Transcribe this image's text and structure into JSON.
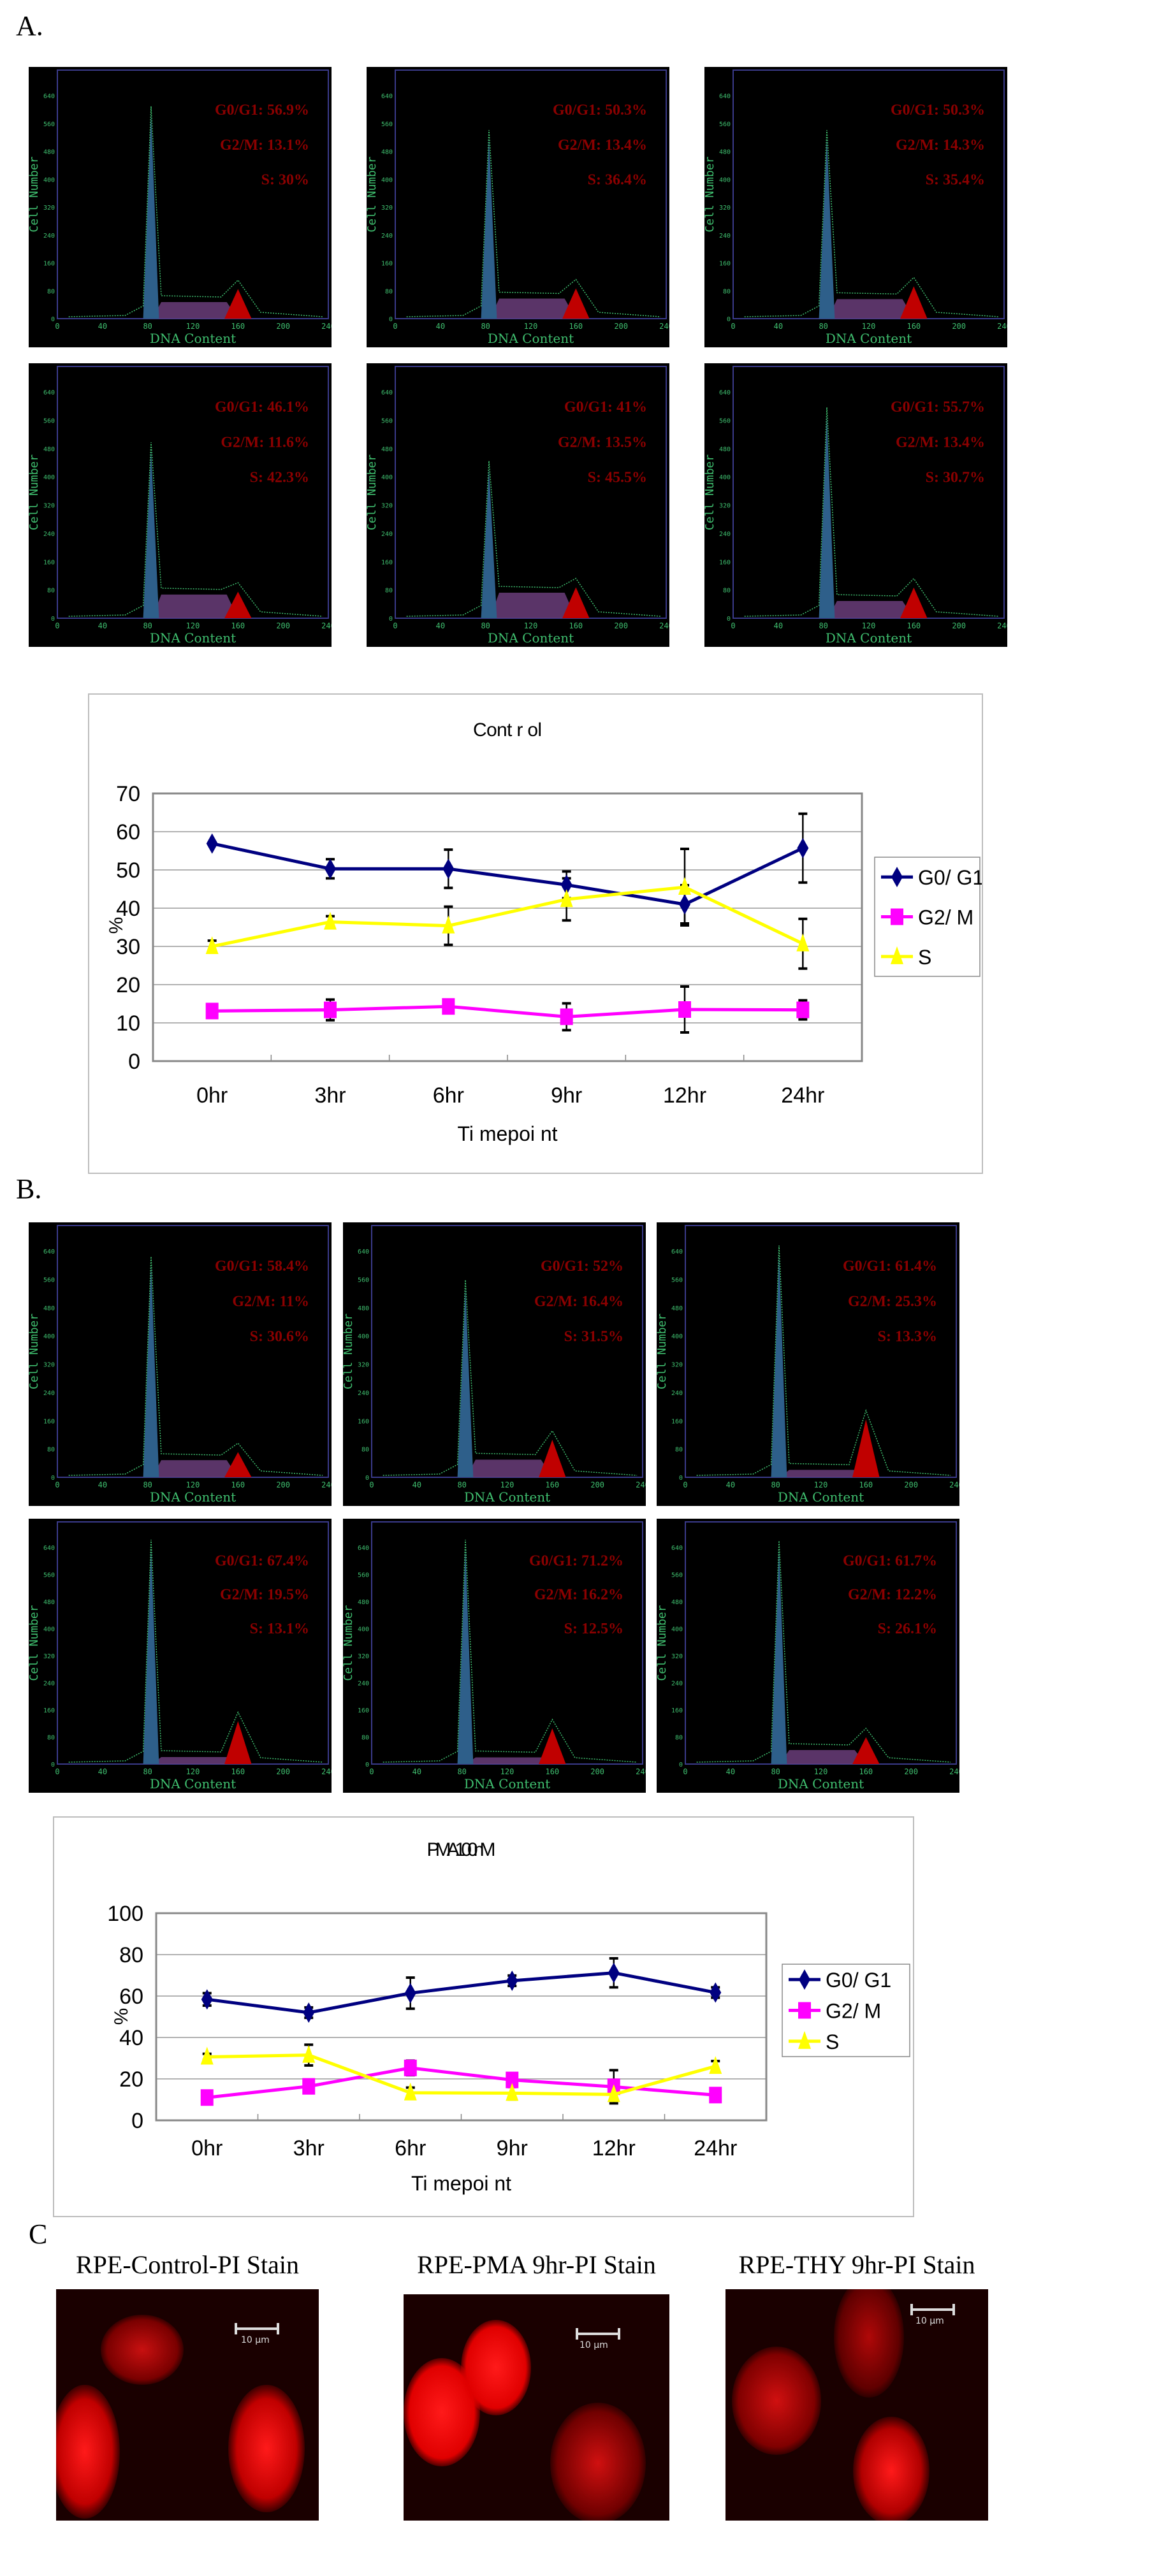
{
  "labels": {
    "a": "A.",
    "b": "B.",
    "c": "C"
  },
  "histogram_axes": {
    "ylabel": "Cell Number",
    "xlabel": "DNA Content",
    "yticks": [
      "0",
      "80",
      "160",
      "240",
      "320",
      "400",
      "480",
      "560",
      "640"
    ],
    "xticks": [
      "0",
      "40",
      "80",
      "120",
      "160",
      "200",
      "240"
    ]
  },
  "colors": {
    "g1_peak": "#2e5f8a",
    "s_phase": "#6a3d7a",
    "g2_peak": "#c00000",
    "trace": "#3fbf6f",
    "stats_text": "#8b0000"
  },
  "panel_a_histograms": [
    {
      "g0g1": "G0/G1: 56.9%",
      "g2m": "G2/M: 13.1%",
      "s": "S: 30%"
    },
    {
      "g0g1": "G0/G1: 50.3%",
      "g2m": "G2/M: 13.4%",
      "s": "S: 36.4%"
    },
    {
      "g0g1": "G0/G1: 50.3%",
      "g2m": "G2/M: 14.3%",
      "s": "S: 35.4%"
    },
    {
      "g0g1": "G0/G1: 46.1%",
      "g2m": "G2/M: 11.6%",
      "s": "S: 42.3%"
    },
    {
      "g0g1": "G0/G1: 41%",
      "g2m": "G2/M: 13.5%",
      "s": "S: 45.5%"
    },
    {
      "g0g1": "G0/G1: 55.7%",
      "g2m": "G2/M: 13.4%",
      "s": "S: 30.7%"
    }
  ],
  "panel_b_histograms": [
    {
      "g0g1": "G0/G1: 58.4%",
      "g2m": "G2/M: 11%",
      "s": "S: 30.6%"
    },
    {
      "g0g1": "G0/G1: 52%",
      "g2m": "G2/M: 16.4%",
      "s": "S: 31.5%"
    },
    {
      "g0g1": "G0/G1: 61.4%",
      "g2m": "G2/M: 25.3%",
      "s": "S: 13.3%"
    },
    {
      "g0g1": "G0/G1: 67.4%",
      "g2m": "G2/M: 19.5%",
      "s": "S: 13.1%"
    },
    {
      "g0g1": "G0/G1: 71.2%",
      "g2m": "G2/M: 16.2%",
      "s": "S: 12.5%"
    },
    {
      "g0g1": "G0/G1: 61.7%",
      "g2m": "G2/M: 12.2%",
      "s": "S: 26.1%"
    }
  ],
  "chart_data": [
    {
      "type": "line",
      "title": "Cont r ol",
      "xlabel": "Ti mepoi nt",
      "ylabel": "%",
      "categories": [
        "0hr",
        "3hr",
        "6hr",
        "9hr",
        "12hr",
        "24hr"
      ],
      "ylim": [
        0,
        70
      ],
      "yticks": [
        0,
        10,
        20,
        30,
        40,
        50,
        60,
        70
      ],
      "grid": true,
      "legend": "right",
      "series": [
        {
          "name": "G0/ G1",
          "color": "#000080",
          "marker": "diamond",
          "values": [
            56.9,
            50.3,
            50.3,
            46.1,
            41,
            55.7
          ],
          "errors": [
            0,
            2.5,
            5,
            3.5,
            5,
            9
          ]
        },
        {
          "name": "G2/ M",
          "color": "#ff00ff",
          "marker": "square",
          "values": [
            13.1,
            13.4,
            14.3,
            11.6,
            13.5,
            13.4
          ],
          "errors": [
            0,
            2.7,
            0,
            3.5,
            6,
            2.5
          ]
        },
        {
          "name": "S",
          "color": "#ffff00",
          "marker": "triangle",
          "values": [
            30,
            36.4,
            35.4,
            42.3,
            45.5,
            30.7
          ],
          "errors": [
            1.5,
            1.5,
            5,
            5.5,
            10,
            6.5
          ]
        }
      ]
    },
    {
      "type": "line",
      "title": "PMA 100nM",
      "xlabel": "Ti mepoi nt",
      "ylabel": "%",
      "categories": [
        "0hr",
        "3hr",
        "6hr",
        "9hr",
        "12hr",
        "24hr"
      ],
      "ylim": [
        0,
        100
      ],
      "yticks": [
        0,
        20,
        40,
        60,
        80,
        100
      ],
      "grid": true,
      "legend": "right",
      "series": [
        {
          "name": "G0/ G1",
          "color": "#000080",
          "marker": "diamond",
          "values": [
            58.4,
            52,
            61.4,
            67.4,
            71.2,
            61.7
          ],
          "errors": [
            3,
            2.5,
            7.5,
            2.5,
            7,
            2.5
          ]
        },
        {
          "name": "G2/ M",
          "color": "#ff00ff",
          "marker": "square",
          "values": [
            11,
            16.4,
            25.3,
            19.5,
            16.2,
            12.2
          ],
          "errors": [
            0,
            3,
            3.5,
            3,
            8,
            0
          ]
        },
        {
          "name": "S",
          "color": "#ffff00",
          "marker": "triangle",
          "values": [
            30.6,
            31.5,
            13.3,
            13.1,
            12.5,
            26.1
          ],
          "errors": [
            1.5,
            5,
            2.5,
            3,
            3,
            2.5
          ]
        }
      ]
    }
  ],
  "micrographs": [
    {
      "title": "RPE-Control-PI Stain",
      "scale": "10 µm"
    },
    {
      "title": "RPE-PMA 9hr-PI Stain",
      "scale": "10 µm"
    },
    {
      "title": "RPE-THY 9hr-PI Stain",
      "scale": "10 µm"
    }
  ]
}
